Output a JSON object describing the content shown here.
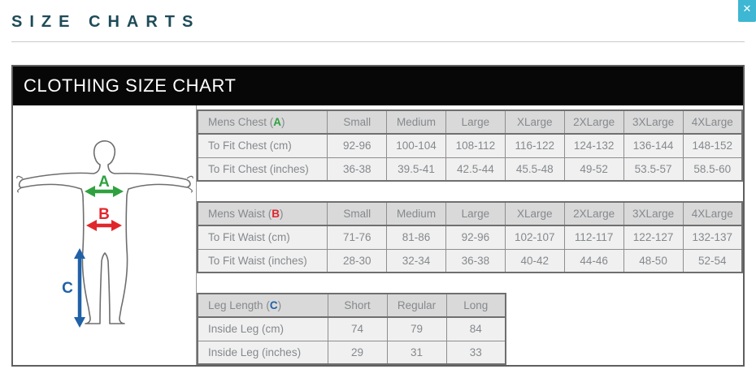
{
  "page": {
    "title": "SIZE CHARTS",
    "close_glyph": "✕"
  },
  "panel": {
    "title": "CLOTHING SIZE CHART"
  },
  "diagram": {
    "chest_label": "A",
    "waist_label": "B",
    "leg_label": "C",
    "chest_color": "#2fa13f",
    "waist_color": "#e1262b",
    "leg_color": "#2061a8",
    "outline_color": "#6e6e6e"
  },
  "accent": {
    "title_color": "#1e4b59",
    "close_button_color": "#3db7d3",
    "header_bar_color": "#070707"
  },
  "tables": [
    {
      "name": "mens-chest-table",
      "label_prefix": "Mens Chest (",
      "key_letter": "A",
      "label_suffix": ")",
      "key_color": "#2fa13f",
      "columns": [
        "Small",
        "Medium",
        "Large",
        "XLarge",
        "2XLarge",
        "3XLarge",
        "4XLarge"
      ],
      "rows": [
        {
          "label": "To Fit Chest (cm)",
          "values": [
            "92-96",
            "100-104",
            "108-112",
            "116-122",
            "124-132",
            "136-144",
            "148-152"
          ]
        },
        {
          "label": "To Fit Chest (inches)",
          "values": [
            "36-38",
            "39.5-41",
            "42.5-44",
            "45.5-48",
            "49-52",
            "53.5-57",
            "58.5-60"
          ]
        }
      ]
    },
    {
      "name": "mens-waist-table",
      "label_prefix": "Mens Waist (",
      "key_letter": "B",
      "label_suffix": ")",
      "key_color": "#e1262b",
      "columns": [
        "Small",
        "Medium",
        "Large",
        "XLarge",
        "2XLarge",
        "3XLarge",
        "4XLarge"
      ],
      "rows": [
        {
          "label": "To Fit Waist (cm)",
          "values": [
            "71-76",
            "81-86",
            "92-96",
            "102-107",
            "112-117",
            "122-127",
            "132-137"
          ]
        },
        {
          "label": "To Fit Waist (inches)",
          "values": [
            "28-30",
            "32-34",
            "36-38",
            "40-42",
            "44-46",
            "48-50",
            "52-54"
          ]
        }
      ]
    },
    {
      "name": "leg-length-table",
      "label_prefix": "Leg Length (",
      "key_letter": "C",
      "label_suffix": ")",
      "key_color": "#2061a8",
      "columns": [
        "Short",
        "Regular",
        "Long"
      ],
      "rows": [
        {
          "label": "Inside Leg (cm)",
          "values": [
            "74",
            "79",
            "84"
          ]
        },
        {
          "label": "Inside Leg (inches)",
          "values": [
            "29",
            "31",
            "33"
          ]
        }
      ]
    }
  ],
  "layout": {
    "label_col_width": 160,
    "value_col_width": 73
  }
}
